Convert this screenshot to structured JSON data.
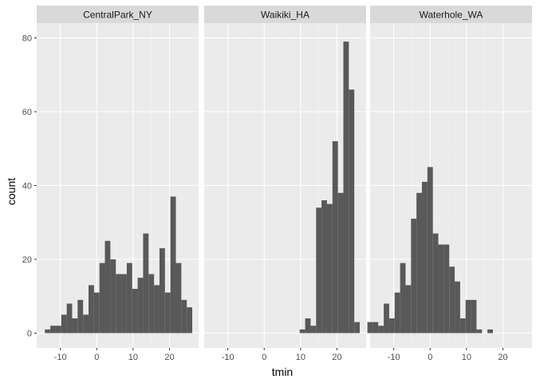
{
  "chart_data": {
    "type": "bar",
    "facet_variable": "site",
    "xlabel": "tmin",
    "ylabel": "count",
    "xlim": [
      -16.5,
      28
    ],
    "ylim": [
      -4,
      84
    ],
    "x_ticks": [
      -10,
      0,
      10,
      20
    ],
    "y_ticks": [
      0,
      20,
      40,
      60,
      80
    ],
    "bin_width": 1.5,
    "grid": true,
    "colors": {
      "bar": "#595959",
      "panel": "#ebebeb",
      "strip": "#d9d9d9",
      "grid_major": "#ffffff",
      "grid_minor": "#f2f2f2"
    },
    "facets": [
      {
        "label": "CentralPark_NY",
        "bars": [
          {
            "x": -13.5,
            "count": 1
          },
          {
            "x": -12.0,
            "count": 2
          },
          {
            "x": -10.5,
            "count": 2
          },
          {
            "x": -9.0,
            "count": 5
          },
          {
            "x": -7.5,
            "count": 8
          },
          {
            "x": -6.0,
            "count": 4
          },
          {
            "x": -4.5,
            "count": 9
          },
          {
            "x": -3.0,
            "count": 5
          },
          {
            "x": -1.5,
            "count": 13
          },
          {
            "x": 0.0,
            "count": 11
          },
          {
            "x": 1.5,
            "count": 19
          },
          {
            "x": 3.0,
            "count": 25
          },
          {
            "x": 4.5,
            "count": 20
          },
          {
            "x": 6.0,
            "count": 16
          },
          {
            "x": 7.5,
            "count": 16
          },
          {
            "x": 9.0,
            "count": 19
          },
          {
            "x": 10.5,
            "count": 12
          },
          {
            "x": 12.0,
            "count": 15
          },
          {
            "x": 13.5,
            "count": 27
          },
          {
            "x": 15.0,
            "count": 16
          },
          {
            "x": 16.5,
            "count": 13
          },
          {
            "x": 18.0,
            "count": 23
          },
          {
            "x": 19.5,
            "count": 11
          },
          {
            "x": 21.0,
            "count": 37
          },
          {
            "x": 22.5,
            "count": 19
          },
          {
            "x": 24.0,
            "count": 9
          },
          {
            "x": 25.5,
            "count": 7
          }
        ]
      },
      {
        "label": "Waikiki_HA",
        "bars": [
          {
            "x": 10.5,
            "count": 1
          },
          {
            "x": 12.0,
            "count": 4
          },
          {
            "x": 13.5,
            "count": 2
          },
          {
            "x": 15.0,
            "count": 34
          },
          {
            "x": 16.5,
            "count": 36
          },
          {
            "x": 18.0,
            "count": 35
          },
          {
            "x": 19.5,
            "count": 52
          },
          {
            "x": 21.0,
            "count": 38
          },
          {
            "x": 22.5,
            "count": 79
          },
          {
            "x": 24.0,
            "count": 66
          },
          {
            "x": 25.5,
            "count": 3
          }
        ]
      },
      {
        "label": "Waterhole_WA",
        "bars": [
          {
            "x": -16.5,
            "count": 3
          },
          {
            "x": -15.0,
            "count": 3
          },
          {
            "x": -13.5,
            "count": 2
          },
          {
            "x": -12.0,
            "count": 8
          },
          {
            "x": -10.5,
            "count": 4
          },
          {
            "x": -9.0,
            "count": 11
          },
          {
            "x": -7.5,
            "count": 19
          },
          {
            "x": -6.0,
            "count": 13
          },
          {
            "x": -4.5,
            "count": 31
          },
          {
            "x": -3.0,
            "count": 38
          },
          {
            "x": -1.5,
            "count": 41
          },
          {
            "x": 0.0,
            "count": 45
          },
          {
            "x": 1.5,
            "count": 27
          },
          {
            "x": 3.0,
            "count": 24
          },
          {
            "x": 4.5,
            "count": 24
          },
          {
            "x": 6.0,
            "count": 18
          },
          {
            "x": 7.5,
            "count": 14
          },
          {
            "x": 9.0,
            "count": 4
          },
          {
            "x": 10.5,
            "count": 9
          },
          {
            "x": 12.0,
            "count": 9
          },
          {
            "x": 13.5,
            "count": 1
          },
          {
            "x": 16.5,
            "count": 1
          }
        ]
      }
    ]
  }
}
